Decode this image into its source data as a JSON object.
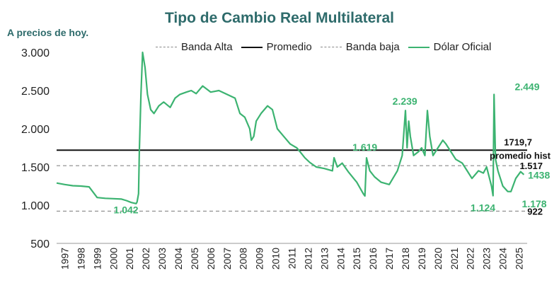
{
  "chart_data": {
    "type": "line",
    "title": "Tipo de Cambio Real Multilateral",
    "subtitle": "A precios de hoy.",
    "xlabel": "",
    "ylabel": "",
    "ylim": [
      500,
      3000
    ],
    "xlim": [
      1997,
      2026
    ],
    "yticks": [
      "3.000",
      "2.500",
      "2.000",
      "1.500",
      "1.000",
      "500"
    ],
    "xticks": [
      "1997",
      "1998",
      "1999",
      "2000",
      "2001",
      "2002",
      "2003",
      "2004",
      "2005",
      "2006",
      "2007",
      "2008",
      "2009",
      "2010",
      "2011",
      "2012",
      "2013",
      "2014",
      "2015",
      "2016",
      "2017",
      "2018",
      "2019",
      "2020",
      "2021",
      "2022",
      "2023",
      "2024",
      "2025"
    ],
    "legend": [
      "Banda Alta",
      "Promedio",
      "Banda baja",
      "Dólar Oficial"
    ],
    "colors": {
      "series": "#3cb371",
      "label": "#3cb371",
      "promedio": "#111111",
      "bands": "#888888",
      "title": "#2e6b6b"
    },
    "reference_lines": {
      "banda_alta": 1517,
      "promedio": 1719.7,
      "banda_baja": 922
    },
    "series": [
      {
        "name": "Dólar Oficial",
        "x": [
          1997.0,
          1997.5,
          1998.0,
          1998.5,
          1999.0,
          1999.5,
          2000.0,
          2000.5,
          2001.0,
          2001.3,
          2001.6,
          2001.9,
          2001.96,
          2002.05,
          2002.1,
          2002.2,
          2002.3,
          2002.45,
          2002.6,
          2002.8,
          2003.0,
          2003.3,
          2003.6,
          2004.0,
          2004.3,
          2004.6,
          2005.0,
          2005.3,
          2005.6,
          2006.0,
          2006.5,
          2007.0,
          2007.5,
          2008.0,
          2008.3,
          2008.6,
          2008.9,
          2009.0,
          2009.15,
          2009.3,
          2009.6,
          2010.0,
          2010.3,
          2010.6,
          2011.0,
          2011.4,
          2011.8,
          2012.0,
          2012.3,
          2012.6,
          2013.0,
          2013.5,
          2014.0,
          2014.1,
          2014.3,
          2014.6,
          2015.0,
          2015.5,
          2015.9,
          2016.0,
          2016.1,
          2016.3,
          2016.6,
          2017.0,
          2017.5,
          2018.0,
          2018.3,
          2018.5,
          2018.6,
          2018.7,
          2018.8,
          2019.0,
          2019.3,
          2019.5,
          2019.7,
          2019.85,
          2020.0,
          2020.2,
          2020.5,
          2020.8,
          2021.0,
          2021.3,
          2021.6,
          2022.0,
          2022.3,
          2022.6,
          2023.0,
          2023.3,
          2023.5,
          2023.8,
          2023.9,
          2023.96,
          2024.05,
          2024.2,
          2024.5,
          2024.8,
          2025.0,
          2025.3,
          2025.6,
          2025.8
        ],
        "values": [
          1290,
          1270,
          1255,
          1250,
          1240,
          1100,
          1090,
          1085,
          1080,
          1060,
          1035,
          1020,
          1042,
          1150,
          1700,
          2450,
          3000,
          2800,
          2450,
          2250,
          2200,
          2300,
          2350,
          2280,
          2400,
          2450,
          2480,
          2500,
          2460,
          2560,
          2480,
          2500,
          2450,
          2400,
          2200,
          2150,
          2000,
          1850,
          1900,
          2100,
          2200,
          2300,
          2250,
          2000,
          1900,
          1800,
          1750,
          1700,
          1620,
          1560,
          1500,
          1480,
          1450,
          1620,
          1500,
          1550,
          1430,
          1300,
          1150,
          1120,
          1619,
          1450,
          1370,
          1300,
          1270,
          1450,
          1650,
          2239,
          1750,
          2100,
          1900,
          1650,
          1700,
          1750,
          1650,
          2239,
          1900,
          1650,
          1750,
          1850,
          1800,
          1700,
          1600,
          1550,
          1450,
          1350,
          1450,
          1420,
          1500,
          1250,
          1124,
          2449,
          1600,
          1450,
          1250,
          1180,
          1178,
          1350,
          1438,
          1400
        ]
      }
    ],
    "annotations": [
      {
        "id": "min_2001",
        "x": 2001.8,
        "y": 1042,
        "text": "1.042"
      },
      {
        "id": "peak_2016",
        "x": 2016.0,
        "y": 1619,
        "text": "1.619"
      },
      {
        "id": "peak_2019",
        "x": 2018.9,
        "y": 2239,
        "text": "2.239"
      },
      {
        "id": "peak_2024",
        "x": 2024.8,
        "y": 2449,
        "text": "2.449"
      },
      {
        "id": "min_2023",
        "x": 2023.8,
        "y": 1124,
        "text": "1.124"
      },
      {
        "id": "min_2025",
        "x": 2025.5,
        "y": 1178,
        "text": "1.178"
      },
      {
        "id": "last_2025",
        "x": 2025.7,
        "y": 1438,
        "text": "1438"
      }
    ],
    "reference_labels": {
      "promedio_value": "1719,7",
      "promedio_text": "promedio hist",
      "banda_alta_value": "1.517",
      "banda_baja_value": "922"
    }
  }
}
